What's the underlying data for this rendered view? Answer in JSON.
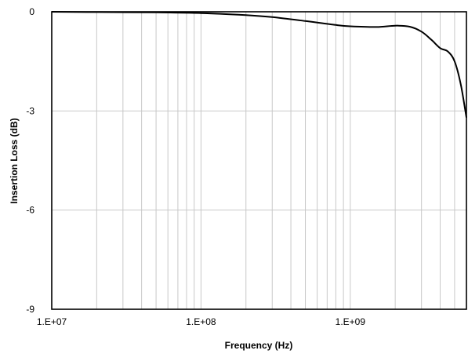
{
  "chart_data": {
    "type": "line",
    "xscale": "log",
    "xlabel": "Frequency (Hz)",
    "ylabel": "Insertion Loss (dB)",
    "xlim": [
      10000000,
      6000000000
    ],
    "ylim": [
      -9,
      0
    ],
    "x_ticks": [
      "1.E+07",
      "1.E+08",
      "1.E+09"
    ],
    "y_ticks": [
      "0",
      "-3",
      "-6",
      "-9"
    ],
    "grid": true,
    "series": [
      {
        "color": "#000000",
        "x": [
          10000000,
          20000000,
          50000000,
          100000000,
          200000000,
          300000000,
          500000000,
          800000000,
          1000000000,
          1500000000,
          2000000000,
          2500000000,
          3000000000,
          3500000000,
          4000000000,
          4500000000,
          5000000000,
          5500000000,
          6000000000
        ],
        "y": [
          0.0,
          -0.01,
          -0.02,
          -0.04,
          -0.1,
          -0.16,
          -0.28,
          -0.4,
          -0.44,
          -0.46,
          -0.42,
          -0.45,
          -0.6,
          -0.85,
          -1.1,
          -1.2,
          -1.5,
          -2.2,
          -3.2
        ]
      }
    ]
  }
}
